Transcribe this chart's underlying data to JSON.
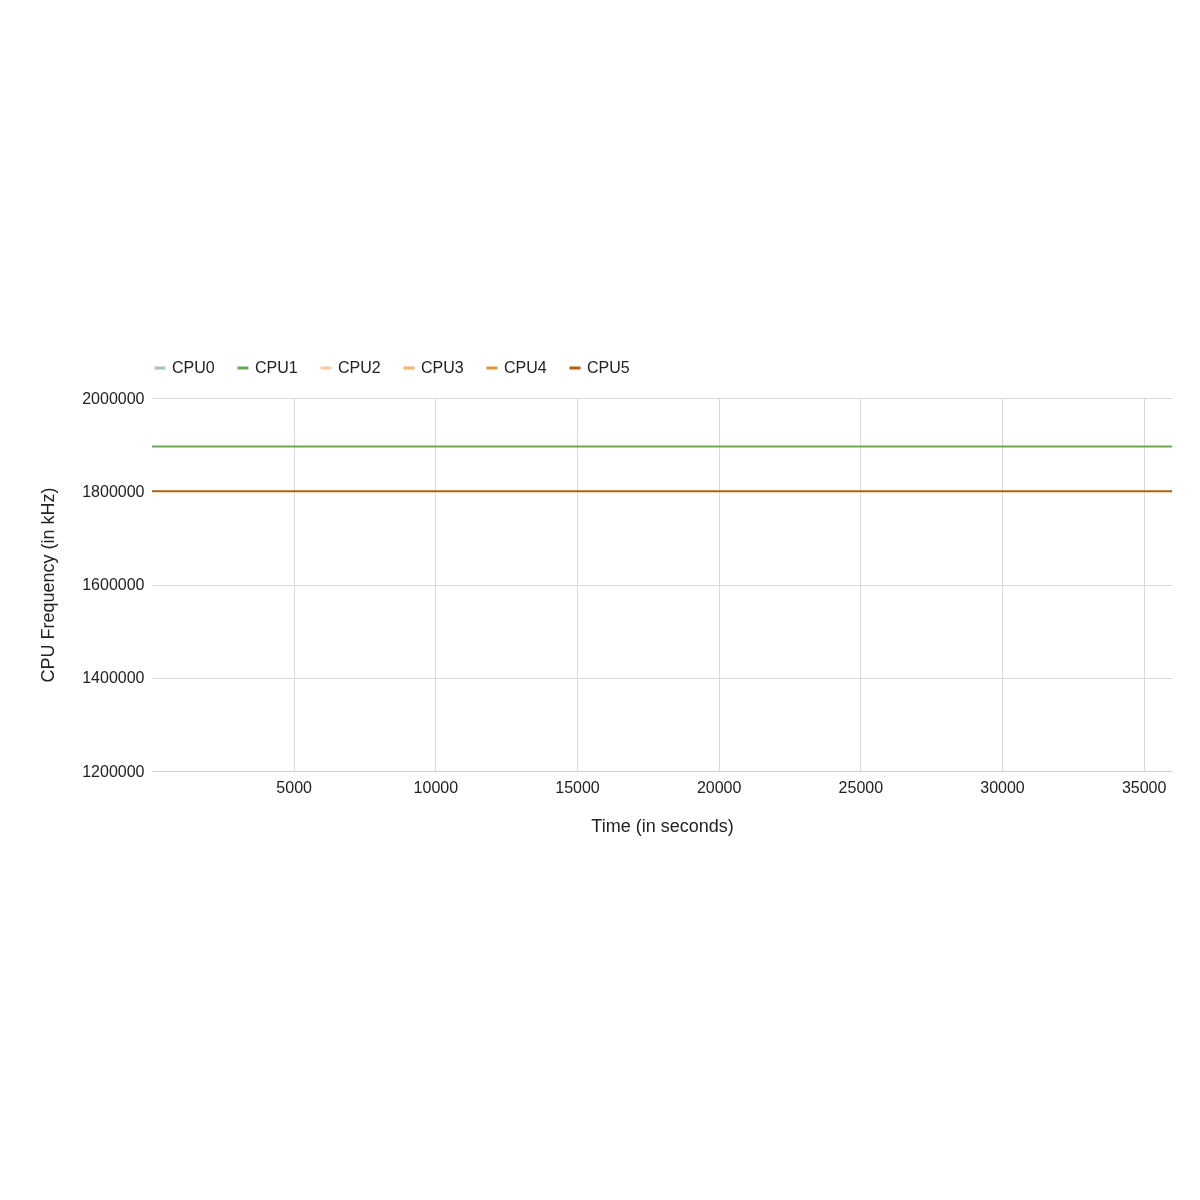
{
  "chart_data": {
    "type": "line",
    "xlabel": "Time (in seconds)",
    "ylabel": "CPU Frequency (in kHz)",
    "x": [
      0,
      36000
    ],
    "series": [
      {
        "name": "CPU0",
        "color": "#a2c4c9",
        "values": [
          null,
          null
        ]
      },
      {
        "name": "CPU1",
        "color": "#6aa84f",
        "values": [
          1896000,
          1896000
        ]
      },
      {
        "name": "CPU2",
        "color": "#f9cb9c",
        "values": [
          null,
          null
        ]
      },
      {
        "name": "CPU3",
        "color": "#f6b26b",
        "values": [
          null,
          null
        ]
      },
      {
        "name": "CPU4",
        "color": "#e69138",
        "values": [
          null,
          null
        ]
      },
      {
        "name": "CPU5",
        "color": "#b45f06",
        "values": [
          1800000,
          1800000
        ]
      }
    ],
    "xlim": [
      0,
      36000
    ],
    "xticks": [
      5000,
      10000,
      15000,
      20000,
      25000,
      30000,
      35000
    ],
    "ylim": [
      1200000,
      2000000
    ],
    "yticks": [
      1200000,
      1400000,
      1600000,
      1800000,
      2000000
    ],
    "grid": true,
    "legend": "top",
    "marker": "none",
    "line_style": "solid"
  }
}
